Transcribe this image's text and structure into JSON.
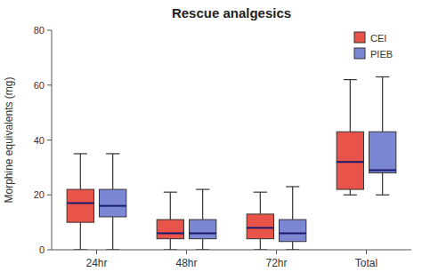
{
  "chart_data": {
    "type": "box",
    "title": "Rescue analgesics",
    "ylabel": "Morphine equivalents (mg)",
    "categories": [
      "24hr",
      "48hr",
      "72hr",
      "Total"
    ],
    "ylim": [
      0,
      80
    ],
    "yticks": [
      0,
      20,
      40,
      60,
      80
    ],
    "grid": false,
    "legend": "upper-right",
    "series": [
      {
        "name": "CEI",
        "color": "#e8534a",
        "whislo": [
          0,
          0,
          0,
          20
        ],
        "q1": [
          10,
          4,
          4,
          22
        ],
        "med": [
          17,
          6,
          8,
          32
        ],
        "q3": [
          22,
          11,
          13,
          43
        ],
        "whishi": [
          35,
          21,
          21,
          62
        ]
      },
      {
        "name": "PIEB",
        "color": "#7b87d4",
        "whislo": [
          0,
          0,
          0,
          20
        ],
        "q1": [
          12,
          4,
          3,
          28
        ],
        "med": [
          16,
          6,
          6,
          29
        ],
        "q3": [
          22,
          11,
          11,
          43
        ],
        "whishi": [
          35,
          22,
          23,
          63
        ]
      }
    ]
  }
}
